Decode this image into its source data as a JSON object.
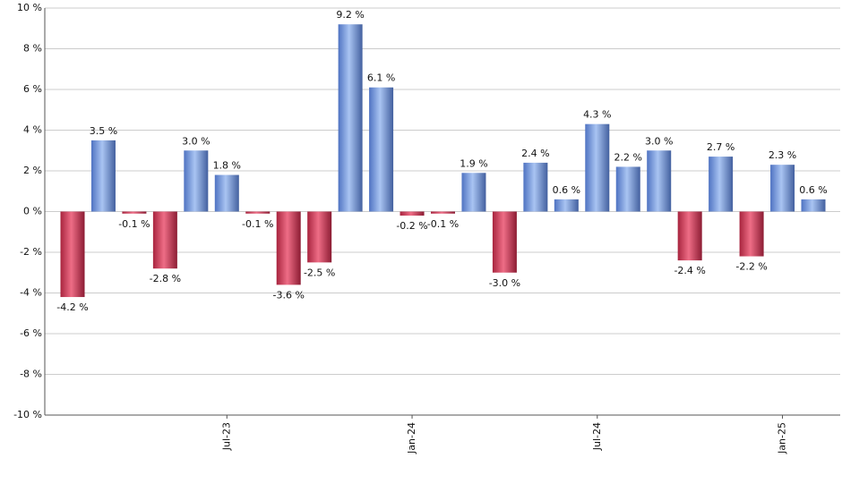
{
  "chart_data": {
    "type": "bar",
    "categories": [
      null,
      null,
      null,
      null,
      null,
      "Jul-23",
      null,
      null,
      null,
      null,
      null,
      "Jan-24",
      null,
      null,
      null,
      null,
      null,
      "Jul-24",
      null,
      null,
      null,
      null,
      null,
      "Jan-25",
      null
    ],
    "values": [
      -4.2,
      3.5,
      -0.1,
      -2.8,
      3.0,
      1.8,
      -0.1,
      -3.6,
      -2.5,
      9.2,
      6.1,
      -0.2,
      -0.1,
      1.9,
      -3.0,
      2.4,
      0.6,
      4.3,
      2.2,
      3.0,
      -2.4,
      2.7,
      -2.2,
      2.3,
      0.6
    ],
    "value_labels": [
      "-4.2 %",
      "3.5 %",
      "-0.1 %",
      "-2.8 %",
      "3.0 %",
      "1.8 %",
      "-0.1 %",
      "-3.6 %",
      "-2.5 %",
      "9.2 %",
      "6.1 %",
      "-0.2 %",
      "-0.1 %",
      "1.9 %",
      "-3.0 %",
      "2.4 %",
      "0.6 %",
      "4.3 %",
      "2.2 %",
      "3.0 %",
      "-2.4 %",
      "2.7 %",
      "-2.2 %",
      "2.3 %",
      "0.6 %"
    ],
    "positive_color": "#7b9fe0",
    "negative_color": "#c8435e",
    "ylim": [
      -10,
      10
    ],
    "yticks": [
      {
        "value": -10,
        "label": "-10 %"
      },
      {
        "value": -8,
        "label": "-8 %"
      },
      {
        "value": -6,
        "label": "-6 %"
      },
      {
        "value": -4,
        "label": "-4 %"
      },
      {
        "value": -2,
        "label": "-2 %"
      },
      {
        "value": 0,
        "label": "0 %"
      },
      {
        "value": 2,
        "label": "2 %"
      },
      {
        "value": 4,
        "label": "4 %"
      },
      {
        "value": 6,
        "label": "6 %"
      },
      {
        "value": 8,
        "label": "8 %"
      },
      {
        "value": 10,
        "label": "10 %"
      }
    ],
    "grid": true
  }
}
